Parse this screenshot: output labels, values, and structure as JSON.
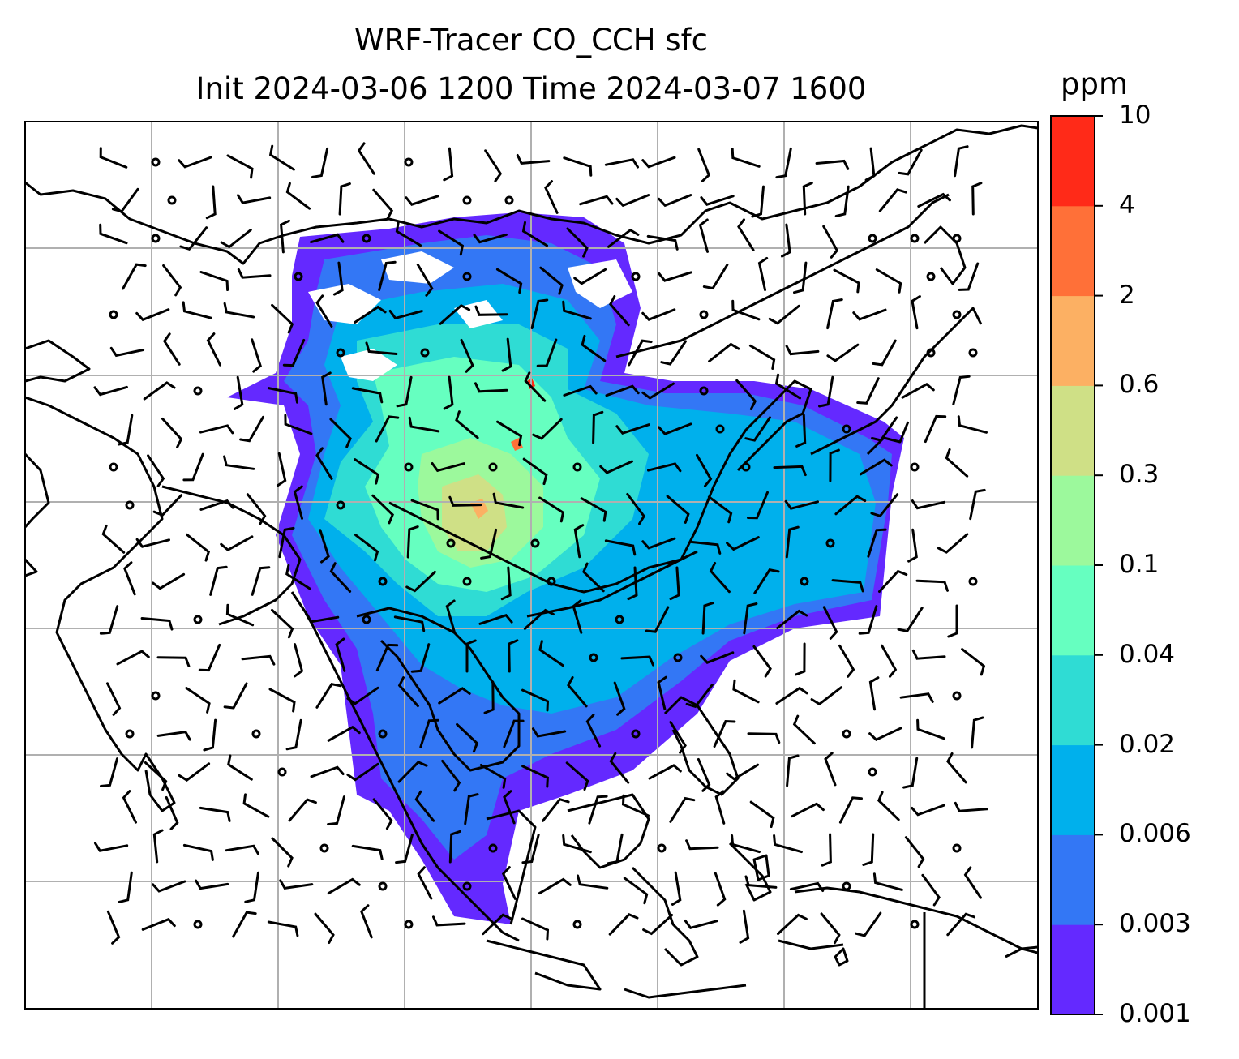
{
  "title": {
    "line1": "WRF-Tracer CO_CCH sfc",
    "line2": "Init 2024-03-06 1200 Time 2024-03-07 1600"
  },
  "colorbar": {
    "unit": "ppm",
    "levels": [
      "0.001",
      "0.003",
      "0.006",
      "0.02",
      "0.04",
      "0.1",
      "0.3",
      "0.6",
      "2",
      "4",
      "10"
    ],
    "colors": [
      "#6429ff",
      "#3377f5",
      "#00b0ec",
      "#2fdcd4",
      "#66ffc0",
      "#9cf99c",
      "#cfe086",
      "#fcb063",
      "#ff7038",
      "#ff2a18"
    ]
  },
  "map": {
    "gridlines": true,
    "coastline_color": "#000000",
    "grid_color": "#b0b0b0"
  }
}
